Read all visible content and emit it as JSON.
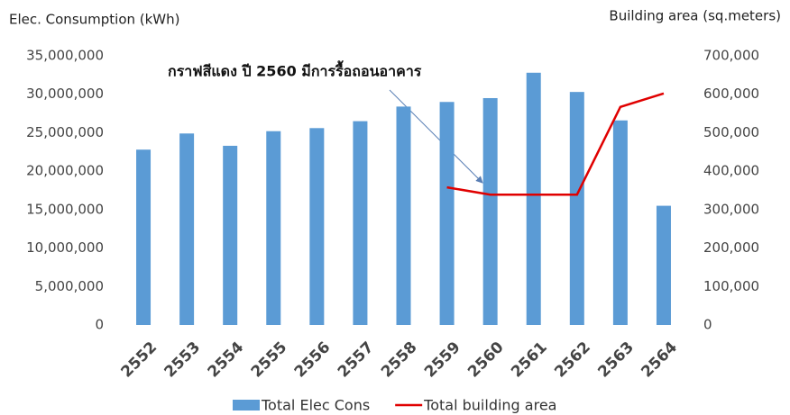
{
  "chart_data": {
    "type": "bar",
    "y_label": "Elec. Consumption (kWh)",
    "y2_label": "Building area (sq.meters)",
    "annotation": "กราฟสีแดง ปี 2560 มีการรื้อถอนอาคาร",
    "categories": [
      "2552",
      "2553",
      "2554",
      "2555",
      "2556",
      "2557",
      "2558",
      "2559",
      "2560",
      "2561",
      "2562",
      "2563",
      "2564"
    ],
    "series": [
      {
        "name": "Total Elec Cons",
        "type": "bar",
        "color": "#5b9bd5",
        "values": [
          22800000,
          24900000,
          23300000,
          25200000,
          25600000,
          26500000,
          28400000,
          29000000,
          29500000,
          32800000,
          30300000,
          26600000,
          15500000
        ]
      },
      {
        "name": "Total building area",
        "type": "line",
        "axis": "y2",
        "color": "#e00000",
        "values": [
          null,
          null,
          null,
          null,
          null,
          null,
          null,
          358000,
          339000,
          339000,
          339000,
          567000,
          602000
        ]
      }
    ],
    "ylim": [
      0,
      35000000
    ],
    "yticks": [
      0,
      {
        "value": 5000000,
        "label": "5,000,000"
      },
      {
        "value": 10000000,
        "label": "10,000,000"
      },
      {
        "value": 15000000,
        "label": "15,000,000"
      },
      {
        "value": 20000000,
        "label": "20,000,000"
      },
      {
        "value": 25000000,
        "label": "25,000,000"
      },
      {
        "value": 30000000,
        "label": "30,000,000"
      },
      {
        "value": 35000000,
        "label": "35,000,000"
      }
    ],
    "y2lim": [
      0,
      700000
    ],
    "y2ticks": [
      0,
      {
        "value": 100000,
        "label": "100,000"
      },
      {
        "value": 200000,
        "label": "200,000"
      },
      {
        "value": 300000,
        "label": "300,000"
      },
      {
        "value": 400000,
        "label": "400,000"
      },
      {
        "value": 500000,
        "label": "500,000"
      },
      {
        "value": 600000,
        "label": "600,000"
      },
      {
        "value": 700000,
        "label": "700,000"
      }
    ]
  }
}
